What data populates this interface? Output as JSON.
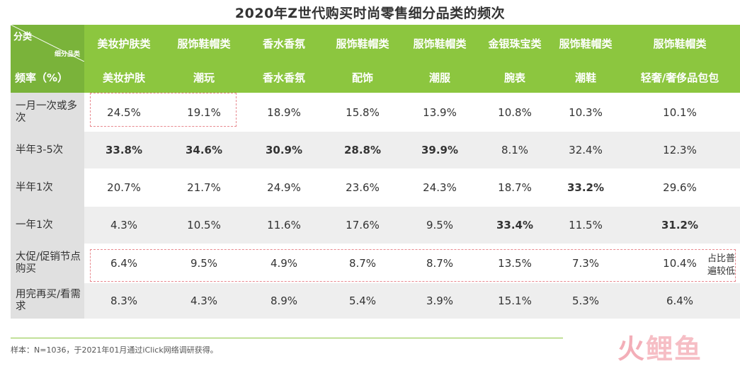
{
  "title": "2020年Z世代购买时尚零售细分品类的频次",
  "corner": {
    "top_label": "分类",
    "bottom_label": "细分品类"
  },
  "freq_header": "频率（%）",
  "categories": [
    "美妆护肤类",
    "服饰鞋帽类",
    "香水香氛",
    "服饰鞋帽类",
    "服饰鞋帽类",
    "金银珠宝类",
    "服饰鞋帽类",
    "服饰鞋帽类"
  ],
  "subcategories": [
    "美妆护肤",
    "潮玩",
    "香水香氛",
    "配饰",
    "潮服",
    "腕表",
    "潮鞋",
    "轻奢/奢侈品包包"
  ],
  "rows": [
    {
      "label": "一月一次或多次",
      "values": [
        "24.5%",
        "19.1%",
        "18.9%",
        "15.8%",
        "13.9%",
        "10.8%",
        "10.3%",
        "10.1%"
      ],
      "bold": [
        false,
        false,
        false,
        false,
        false,
        false,
        false,
        false
      ]
    },
    {
      "label": "半年3-5次",
      "values": [
        "33.8%",
        "34.6%",
        "30.9%",
        "28.8%",
        "39.9%",
        "8.1%",
        "32.4%",
        "12.3%"
      ],
      "bold": [
        true,
        true,
        true,
        true,
        true,
        false,
        false,
        false
      ]
    },
    {
      "label": "半年1次",
      "values": [
        "20.7%",
        "21.7%",
        "24.9%",
        "23.6%",
        "24.3%",
        "18.7%",
        "33.2%",
        "29.6%"
      ],
      "bold": [
        false,
        false,
        false,
        false,
        false,
        false,
        true,
        false
      ]
    },
    {
      "label": "一年1次",
      "values": [
        "4.3%",
        "10.5%",
        "11.6%",
        "17.6%",
        "9.5%",
        "33.4%",
        "11.5%",
        "31.2%"
      ],
      "bold": [
        false,
        false,
        false,
        false,
        false,
        true,
        false,
        true
      ]
    },
    {
      "label": "大促/促销节点购买",
      "values": [
        "6.4%",
        "9.5%",
        "4.9%",
        "8.7%",
        "8.7%",
        "13.5%",
        "7.3%",
        "10.4%"
      ],
      "bold": [
        false,
        false,
        false,
        false,
        false,
        false,
        false,
        false
      ]
    },
    {
      "label": "用完再买/看需求",
      "values": [
        "8.3%",
        "4.3%",
        "8.9%",
        "5.4%",
        "3.9%",
        "15.1%",
        "5.3%",
        "6.4%"
      ],
      "bold": [
        false,
        false,
        false,
        false,
        false,
        false,
        false,
        false
      ]
    }
  ],
  "side_note": "占比普遍较低",
  "footer": "样本：N=1036，于2021年01月通过iClick网络调研获得。",
  "logo": {
    "part1": "火",
    "part2": "鲤鱼"
  },
  "colors": {
    "header_green": "#8cc63f",
    "dash_pink": "#e8898f"
  }
}
